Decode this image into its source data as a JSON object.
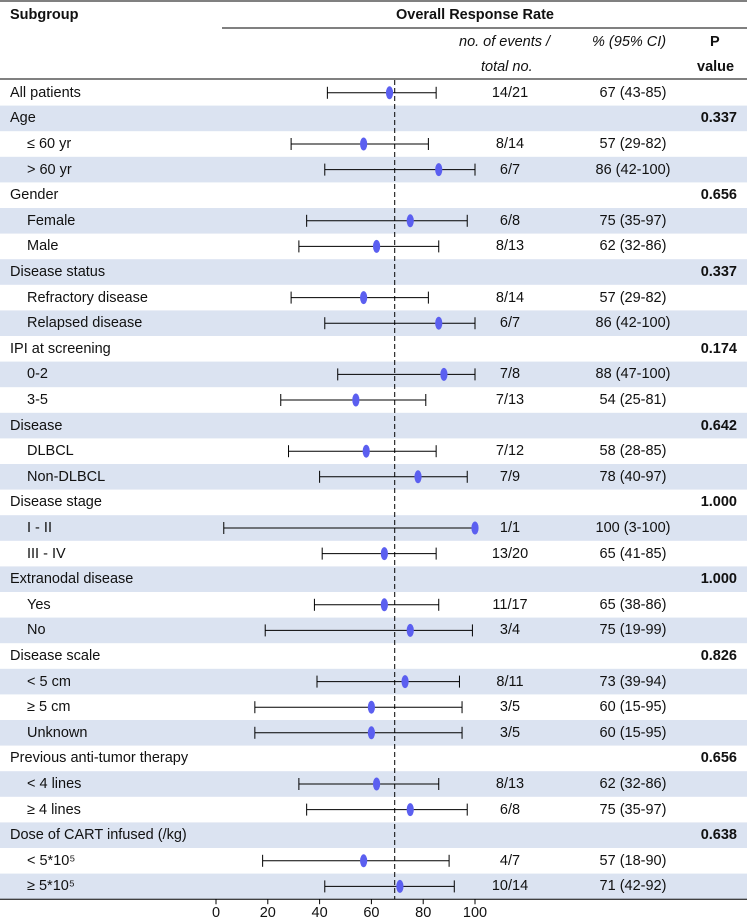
{
  "header": {
    "subgroup": "Subgroup",
    "title": "Overall Response Rate",
    "events_line1": "no. of events /",
    "events_line2": "total no.",
    "ci_label": "% (95% CI)",
    "p_line1": "P",
    "p_line2": "value"
  },
  "rows": [
    {
      "label": "All patients",
      "indent": false,
      "shade": false,
      "events": "14/21",
      "ci": "67 (43-85)",
      "est": 67,
      "lo": 43,
      "hi": 85
    },
    {
      "label": "Age",
      "indent": false,
      "shade": true,
      "p": "0.337"
    },
    {
      "label": "≤ 60 yr",
      "indent": true,
      "shade": false,
      "events": "8/14",
      "ci": "57 (29-82)",
      "est": 57,
      "lo": 29,
      "hi": 82
    },
    {
      "label": "> 60 yr",
      "indent": true,
      "shade": true,
      "events": "6/7",
      "ci": "86 (42-100)",
      "est": 86,
      "lo": 42,
      "hi": 100
    },
    {
      "label": "Gender",
      "indent": false,
      "shade": false,
      "p": "0.656"
    },
    {
      "label": "Female",
      "indent": true,
      "shade": true,
      "events": "6/8",
      "ci": "75 (35-97)",
      "est": 75,
      "lo": 35,
      "hi": 97
    },
    {
      "label": "Male",
      "indent": true,
      "shade": false,
      "events": "8/13",
      "ci": "62 (32-86)",
      "est": 62,
      "lo": 32,
      "hi": 86
    },
    {
      "label": "Disease status",
      "indent": false,
      "shade": true,
      "p": "0.337"
    },
    {
      "label": "Refractory disease",
      "indent": true,
      "shade": false,
      "events": "8/14",
      "ci": "57 (29-82)",
      "est": 57,
      "lo": 29,
      "hi": 82
    },
    {
      "label": "Relapsed disease",
      "indent": true,
      "shade": true,
      "events": "6/7",
      "ci": "86 (42-100)",
      "est": 86,
      "lo": 42,
      "hi": 100
    },
    {
      "label": "IPI at screening",
      "indent": false,
      "shade": false,
      "p": "0.174"
    },
    {
      "label": "0-2",
      "indent": true,
      "shade": true,
      "events": "7/8",
      "ci": "88 (47-100)",
      "est": 88,
      "lo": 47,
      "hi": 100
    },
    {
      "label": "3-5",
      "indent": true,
      "shade": false,
      "events": "7/13",
      "ci": "54 (25-81)",
      "est": 54,
      "lo": 25,
      "hi": 81
    },
    {
      "label": "Disease",
      "indent": false,
      "shade": true,
      "p": "0.642"
    },
    {
      "label": "DLBCL",
      "indent": true,
      "shade": false,
      "events": "7/12",
      "ci": "58 (28-85)",
      "est": 58,
      "lo": 28,
      "hi": 85
    },
    {
      "label": "Non-DLBCL",
      "indent": true,
      "shade": true,
      "events": "7/9",
      "ci": "78 (40-97)",
      "est": 78,
      "lo": 40,
      "hi": 97
    },
    {
      "label": "Disease stage",
      "indent": false,
      "shade": false,
      "p": "1.000"
    },
    {
      "label": "I - II",
      "indent": true,
      "shade": true,
      "events": "1/1",
      "ci": "100 (3-100)",
      "est": 100,
      "lo": 3,
      "hi": 100
    },
    {
      "label": "III - IV",
      "indent": true,
      "shade": false,
      "events": "13/20",
      "ci": "65 (41-85)",
      "est": 65,
      "lo": 41,
      "hi": 85
    },
    {
      "label": "Extranodal disease",
      "indent": false,
      "shade": true,
      "p": "1.000"
    },
    {
      "label": "Yes",
      "indent": true,
      "shade": false,
      "events": "11/17",
      "ci": "65 (38-86)",
      "est": 65,
      "lo": 38,
      "hi": 86
    },
    {
      "label": "No",
      "indent": true,
      "shade": true,
      "events": "3/4",
      "ci": "75 (19-99)",
      "est": 75,
      "lo": 19,
      "hi": 99
    },
    {
      "label": "Disease scale",
      "indent": false,
      "shade": false,
      "p": "0.826"
    },
    {
      "label": "< 5 cm",
      "indent": true,
      "shade": true,
      "events": "8/11",
      "ci": "73 (39-94)",
      "est": 73,
      "lo": 39,
      "hi": 94
    },
    {
      "label": "≥ 5 cm",
      "indent": true,
      "shade": false,
      "events": "3/5",
      "ci": "60 (15-95)",
      "est": 60,
      "lo": 15,
      "hi": 95
    },
    {
      "label": "Unknown",
      "indent": true,
      "shade": true,
      "events": "3/5",
      "ci": "60 (15-95)",
      "est": 60,
      "lo": 15,
      "hi": 95
    },
    {
      "label": "Previous anti-tumor therapy",
      "indent": false,
      "shade": false,
      "p": "0.656"
    },
    {
      "label": "< 4 lines",
      "indent": true,
      "shade": true,
      "events": "8/13",
      "ci": "62 (32-86)",
      "est": 62,
      "lo": 32,
      "hi": 86
    },
    {
      "label": "≥ 4 lines",
      "indent": true,
      "shade": false,
      "events": "6/8",
      "ci": "75 (35-97)",
      "est": 75,
      "lo": 35,
      "hi": 97
    },
    {
      "label": "Dose of CART infused (/kg)",
      "indent": false,
      "shade": true,
      "p": "0.638"
    },
    {
      "label": "< 5*10⁵",
      "indent": true,
      "shade": false,
      "events": "4/7",
      "ci": "57 (18-90)",
      "est": 57,
      "lo": 18,
      "hi": 90
    },
    {
      "label": "≥ 5*10⁵",
      "indent": true,
      "shade": true,
      "events": "10/14",
      "ci": "71 (42-92)",
      "est": 71,
      "lo": 42,
      "hi": 92
    }
  ],
  "chart_data": {
    "type": "scatter",
    "title": "Overall Response Rate",
    "xlim": [
      0,
      100
    ],
    "x_ticks": [
      0,
      20,
      40,
      60,
      80,
      100
    ],
    "reference_line": 69,
    "grid": false,
    "marker_color": "#5b5ff0",
    "shade_color": "#dbe3f1"
  }
}
